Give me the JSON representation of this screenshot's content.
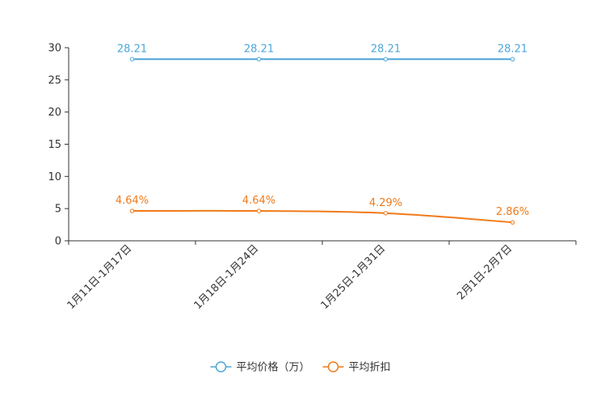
{
  "chart_data": {
    "type": "line",
    "title": "",
    "xlabel": "",
    "ylabel": "",
    "categories": [
      "1月11日-1月17日",
      "1月18日-1月24日",
      "1月25日-1月31日",
      "2月1日-2月7日"
    ],
    "ylim": [
      0,
      30
    ],
    "yticks": [
      0,
      5,
      10,
      15,
      20,
      25,
      30
    ],
    "grid": false,
    "legend_position": "bottom-center",
    "series": [
      {
        "name": "平均价格（万）",
        "color": "#4da6d8",
        "values": [
          28.21,
          28.21,
          28.21,
          28.21
        ],
        "labels": [
          "28.21",
          "28.21",
          "28.21",
          "28.21"
        ]
      },
      {
        "name": "平均折扣",
        "color": "#f07a1a",
        "values": [
          4.64,
          4.64,
          4.29,
          2.86
        ],
        "labels": [
          "4.64%",
          "4.64%",
          "4.29%",
          "2.86%"
        ]
      }
    ]
  }
}
